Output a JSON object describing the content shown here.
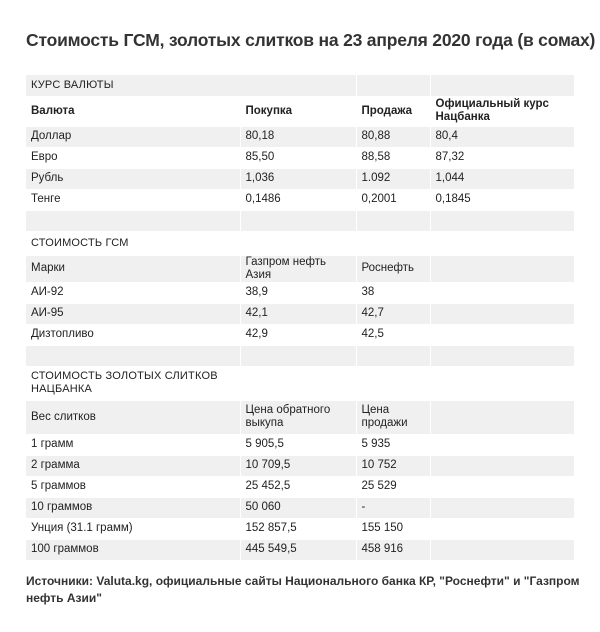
{
  "title": "Стоимость ГСМ, золотых слитков на 23 апреля 2020 года (в сомах)",
  "currency": {
    "section_title": "КУРС ВАЛЮТЫ",
    "headers": [
      "Валюта",
      "Покупка",
      "Продажа",
      "Официальный курс Нацбанка"
    ],
    "rows": [
      [
        "Доллар",
        "80,18",
        "80,88",
        "80,4"
      ],
      [
        "Евро",
        "85,50",
        "88,58",
        "87,32"
      ],
      [
        "Рубль",
        "1,036",
        "1.092",
        "1,044"
      ],
      [
        "Тенге",
        "0,1486",
        "0,2001",
        "0,1845"
      ]
    ]
  },
  "fuel": {
    "section_title": "СТОИМОСТЬ ГСМ",
    "headers": [
      "Марки",
      "Газпром нефть Азия",
      "Роснефть",
      ""
    ],
    "rows": [
      [
        "АИ-92",
        "38,9",
        "38",
        ""
      ],
      [
        "АИ-95",
        "42,1",
        "42,7",
        ""
      ],
      [
        "Дизтопливо",
        "42,9",
        "42,5",
        ""
      ]
    ]
  },
  "gold": {
    "section_title": "СТОИМОСТЬ ЗОЛОТЫХ СЛИТКОВ НАЦБАНКА",
    "headers": [
      "Вес слитков",
      "Цена обратного выкупа",
      "Цена продажи",
      ""
    ],
    "rows": [
      [
        "1 грамм",
        "5 905,5",
        "5 935",
        ""
      ],
      [
        "2 грамма",
        "10 709,5",
        "10 752",
        ""
      ],
      [
        "5 граммов",
        "25 452,5",
        "25 529",
        ""
      ],
      [
        "10 граммов",
        "50 060",
        "-",
        ""
      ],
      [
        "Унция (31.1 грамм)",
        "152 857,5",
        "155 150",
        ""
      ],
      [
        "100 граммов",
        "445 549,5",
        "458 916",
        ""
      ]
    ]
  },
  "footer": "Источники: Valuta.kg, официальные сайты Национального банка КР, \"Роснефти\" и \"Газпром нефть Азии\""
}
